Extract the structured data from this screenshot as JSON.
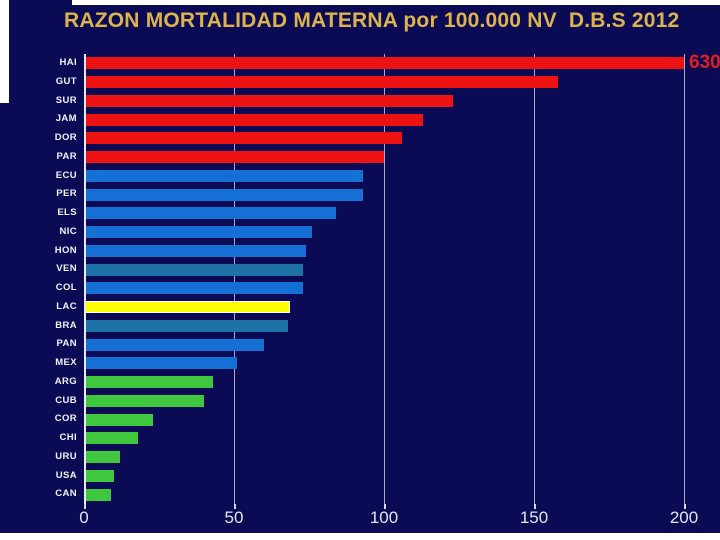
{
  "slide": {
    "background_color": "#0a0a55",
    "title_color": "#ddb44c"
  },
  "chart_data": {
    "type": "bar",
    "orientation": "horizontal",
    "title": "RAZON MORTALIDAD MATERNA por 100.000 NV  D.B.S 2012",
    "xlabel": "",
    "ylabel": "",
    "xlim": [
      0,
      200
    ],
    "x_ticks": [
      "0",
      "50",
      "100",
      "150",
      "200"
    ],
    "x_tick_values": [
      0,
      50,
      100,
      150,
      200
    ],
    "grid": true,
    "clip_max": 200,
    "categories": [
      "HAI",
      "GUT",
      "SUR",
      "JAM",
      "DOR",
      "PAR",
      "ECU",
      "PER",
      "ELS",
      "NIC",
      "HON",
      "VEN",
      "COL",
      "LAC",
      "BRA",
      "PAN",
      "MEX",
      "ARG",
      "CUB",
      "COR",
      "CHI",
      "URU",
      "USA",
      "CAN"
    ],
    "values": [
      630,
      158,
      123,
      113,
      106,
      100,
      93,
      93,
      84,
      76,
      74,
      73,
      73,
      68,
      68,
      60,
      51,
      43,
      40,
      23,
      18,
      12,
      10,
      9
    ],
    "bar_color_keys": [
      "red",
      "red",
      "red",
      "red",
      "red",
      "red",
      "blue",
      "blue",
      "blue",
      "blue",
      "blue",
      "steel",
      "blue",
      "yellow",
      "steel",
      "blue",
      "blue",
      "green",
      "green",
      "green",
      "green",
      "green",
      "green",
      "green"
    ],
    "color_map": {
      "red": "#ee1111",
      "blue": "#1570d6",
      "steel": "#1e72a8",
      "yellow": "#ffff00",
      "green": "#3fc83f"
    },
    "annotations": [
      {
        "category": "HAI",
        "text": "630",
        "color": "#e02020"
      }
    ]
  }
}
